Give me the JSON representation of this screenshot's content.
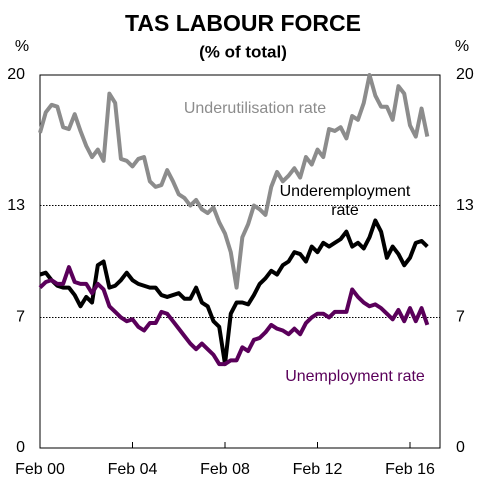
{
  "chart_data": {
    "type": "line",
    "title": "TAS LABOUR FORCE",
    "subtitle": "(% of total)",
    "y_label": "%",
    "y2_label": "%",
    "categories": [
      "Feb 00",
      null,
      null,
      null,
      null,
      null,
      null,
      null,
      null,
      null,
      null,
      null,
      null,
      null,
      null,
      null,
      "Feb 04",
      null,
      null,
      null,
      null,
      null,
      null,
      null,
      null,
      null,
      null,
      null,
      null,
      null,
      null,
      null,
      "Feb 08",
      null,
      null,
      null,
      null,
      null,
      null,
      null,
      null,
      null,
      null,
      null,
      null,
      null,
      null,
      null,
      "Feb 12",
      null,
      null,
      null,
      null,
      null,
      null,
      null,
      null,
      null,
      null,
      null,
      null,
      null,
      null,
      null,
      "Feb 16",
      null,
      null,
      null
    ],
    "ylim": [
      0,
      20
    ],
    "yticks": [
      0,
      7,
      13,
      20
    ],
    "y2lim": [
      0,
      20
    ],
    "y2ticks": [
      0,
      7,
      13,
      20
    ],
    "grid": true,
    "series": [
      {
        "name": "Underutilisation rate",
        "color": "#8c8c8c",
        "values": [
          16.9,
          18.0,
          18.4,
          18.3,
          17.2,
          17.1,
          17.9,
          17.0,
          16.2,
          15.6,
          16.0,
          15.4,
          19.0,
          18.5,
          15.5,
          15.4,
          15.1,
          15.5,
          15.6,
          14.3,
          14.0,
          14.1,
          14.9,
          14.3,
          13.6,
          13.4,
          13.0,
          13.3,
          12.8,
          12.6,
          12.9,
          12.1,
          11.5,
          10.5,
          8.6,
          11.3,
          12.0,
          13.0,
          12.8,
          12.5,
          14.0,
          14.8,
          14.3,
          14.6,
          15.0,
          14.5,
          15.6,
          15.2,
          16.0,
          15.6,
          17.1,
          17.0,
          17.2,
          16.6,
          17.8,
          17.6,
          18.5,
          20.0,
          18.9,
          18.3,
          18.3,
          17.6,
          19.4,
          19.0,
          17.3,
          16.7,
          18.2,
          16.7
        ]
      },
      {
        "name": "Underemployment rate",
        "color": "#000000",
        "values": [
          9.3,
          9.4,
          9.0,
          8.7,
          8.6,
          8.6,
          8.2,
          7.6,
          8.1,
          7.8,
          9.8,
          10.0,
          8.6,
          8.7,
          9.0,
          9.4,
          9.0,
          8.8,
          8.7,
          8.6,
          8.6,
          8.2,
          8.1,
          8.2,
          8.3,
          8.0,
          8.0,
          8.6,
          7.8,
          7.6,
          6.8,
          6.5,
          4.5,
          7.2,
          7.8,
          7.8,
          7.7,
          8.2,
          8.8,
          9.1,
          9.5,
          9.3,
          9.8,
          10.0,
          10.5,
          10.4,
          10.0,
          10.8,
          10.5,
          11.0,
          10.8,
          11.0,
          11.2,
          11.6,
          10.8,
          11.0,
          10.7,
          11.3,
          12.2,
          11.6,
          10.2,
          10.8,
          10.4,
          9.8,
          10.2,
          11.0,
          11.1,
          10.8
        ]
      },
      {
        "name": "Unemployment rate",
        "color": "#5a005a",
        "values": [
          8.6,
          8.9,
          9.0,
          8.8,
          8.8,
          9.7,
          8.9,
          8.8,
          8.8,
          8.3,
          8.8,
          8.5,
          7.6,
          7.3,
          7.0,
          6.8,
          6.9,
          6.5,
          6.3,
          6.7,
          6.7,
          7.3,
          7.2,
          6.8,
          6.4,
          6.0,
          5.6,
          5.3,
          5.6,
          5.3,
          5.0,
          4.5,
          4.5,
          4.7,
          4.7,
          5.4,
          5.2,
          5.8,
          5.9,
          6.2,
          6.6,
          6.4,
          6.3,
          6.1,
          6.4,
          6.1,
          6.7,
          7.0,
          7.2,
          7.2,
          7.0,
          7.3,
          7.3,
          7.3,
          8.5,
          8.1,
          7.8,
          7.6,
          7.7,
          7.5,
          7.2,
          6.9,
          7.4,
          6.8,
          7.5,
          6.8,
          7.5,
          6.6
        ]
      }
    ]
  }
}
